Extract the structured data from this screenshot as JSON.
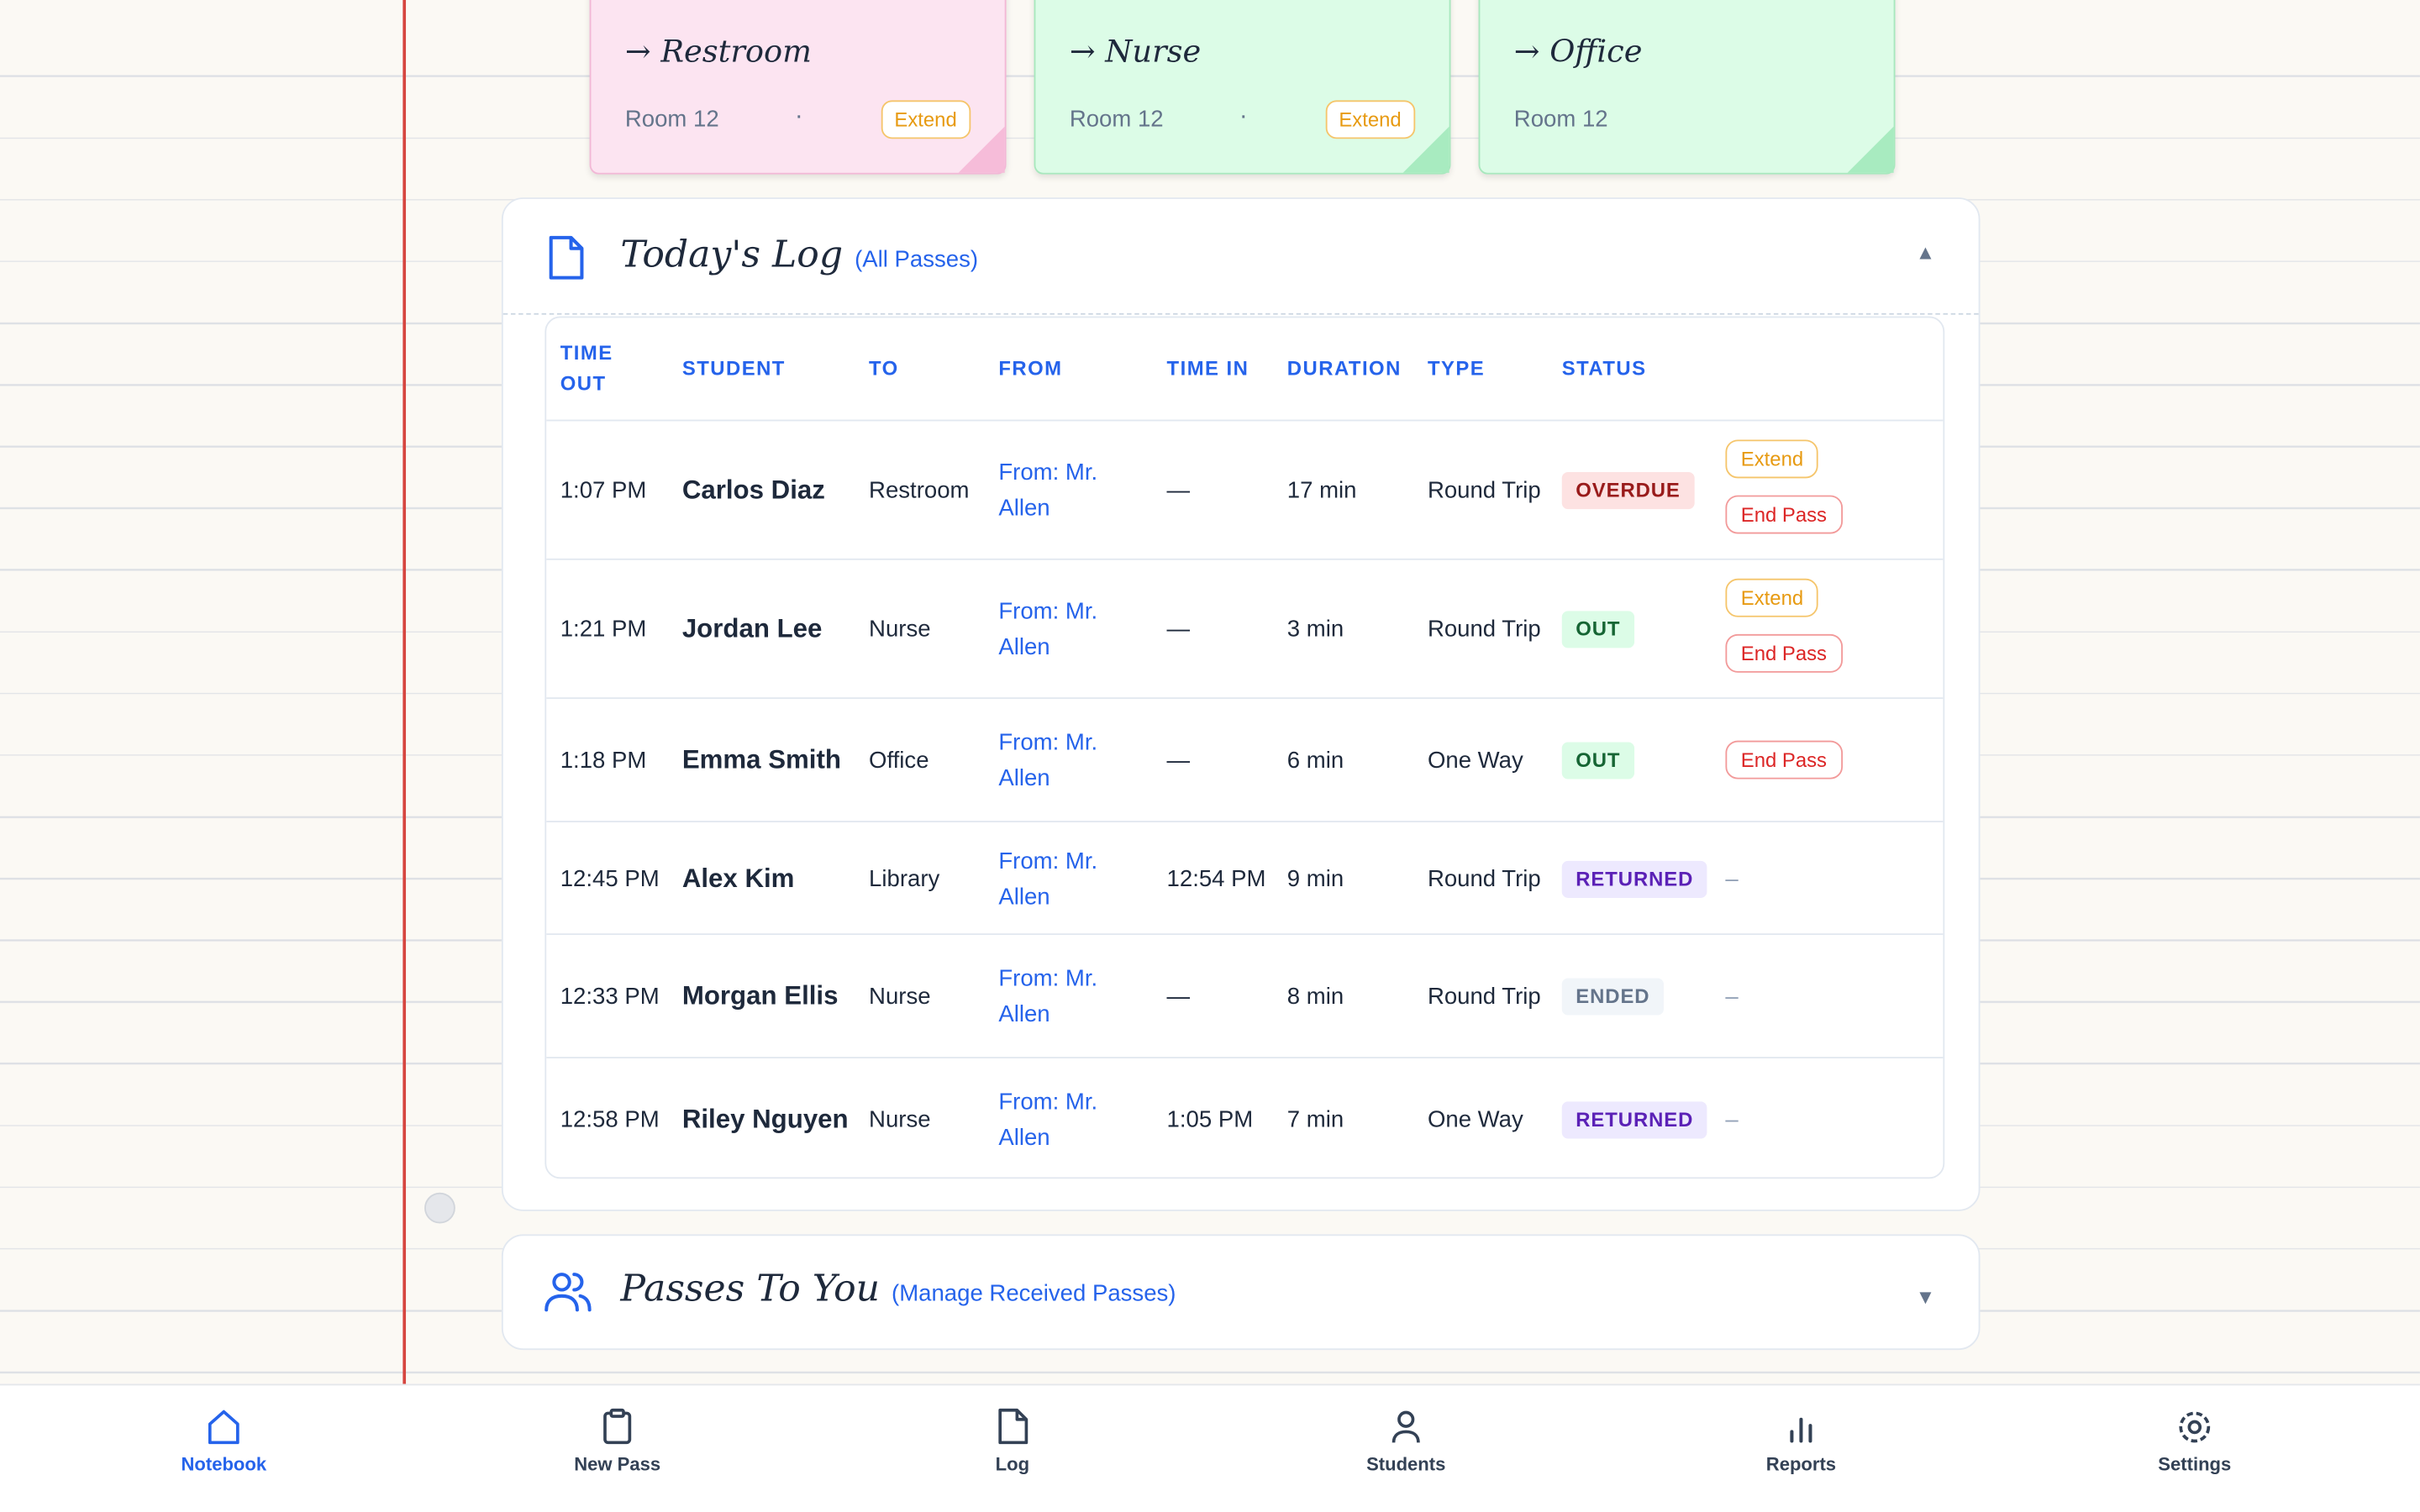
{
  "notes": [
    {
      "destination": "→ Restroom",
      "room": "Room 12",
      "separator": "·",
      "action": "Extend",
      "color": "pink"
    },
    {
      "destination": "→ Nurse",
      "room": "Room 12",
      "separator": "·",
      "action": "Extend",
      "color": "green"
    },
    {
      "destination": "→ Office",
      "room": "Room 12",
      "color": "green"
    }
  ],
  "log": {
    "title": "Today's Log",
    "subtitle": "(All Passes)",
    "toggle": "▲",
    "columns": [
      "TIME OUT",
      "STUDENT",
      "TO",
      "FROM",
      "TIME IN",
      "DURATION",
      "TYPE",
      "STATUS"
    ],
    "rows": [
      {
        "time_out": "1:07 PM",
        "student": "Carlos Diaz",
        "to": "Restroom",
        "from": "From: Mr. Allen",
        "time_in": "—",
        "duration": "17 min",
        "type": "Round Trip",
        "status": "OVERDUE",
        "actions": [
          "Extend",
          "End Pass"
        ]
      },
      {
        "time_out": "1:21 PM",
        "student": "Jordan Lee",
        "to": "Nurse",
        "from": "From: Mr. Allen",
        "time_in": "—",
        "duration": "3 min",
        "type": "Round Trip",
        "status": "OUT",
        "actions": [
          "Extend",
          "End Pass"
        ]
      },
      {
        "time_out": "1:18 PM",
        "student": "Emma Smith",
        "to": "Office",
        "from": "From: Mr. Allen",
        "time_in": "—",
        "duration": "6 min",
        "type": "One Way",
        "status": "OUT",
        "actions": [
          "End Pass"
        ]
      },
      {
        "time_out": "12:45 PM",
        "student": "Alex Kim",
        "to": "Library",
        "from": "From: Mr. Allen",
        "time_in": "12:54 PM",
        "duration": "9 min",
        "type": "Round Trip",
        "status": "RETURNED",
        "no_action": "–"
      },
      {
        "time_out": "12:33 PM",
        "student": "Morgan Ellis",
        "to": "Nurse",
        "from": "From: Mr. Allen",
        "time_in": "—",
        "duration": "8 min",
        "type": "Round Trip",
        "status": "ENDED",
        "no_action": "–"
      },
      {
        "time_out": "12:58 PM",
        "student": "Riley Nguyen",
        "to": "Nurse",
        "from": "From: Mr. Allen",
        "time_in": "1:05 PM",
        "duration": "7 min",
        "type": "One Way",
        "status": "RETURNED",
        "no_action": "–"
      }
    ]
  },
  "passes": {
    "title": "Passes To You",
    "subtitle": "(Manage Received Passes)",
    "toggle": "▼"
  },
  "nav": [
    {
      "label": "Notebook",
      "active": true
    },
    {
      "label": "New Pass"
    },
    {
      "label": "Log"
    },
    {
      "label": "Students"
    },
    {
      "label": "Reports"
    },
    {
      "label": "Settings"
    }
  ]
}
